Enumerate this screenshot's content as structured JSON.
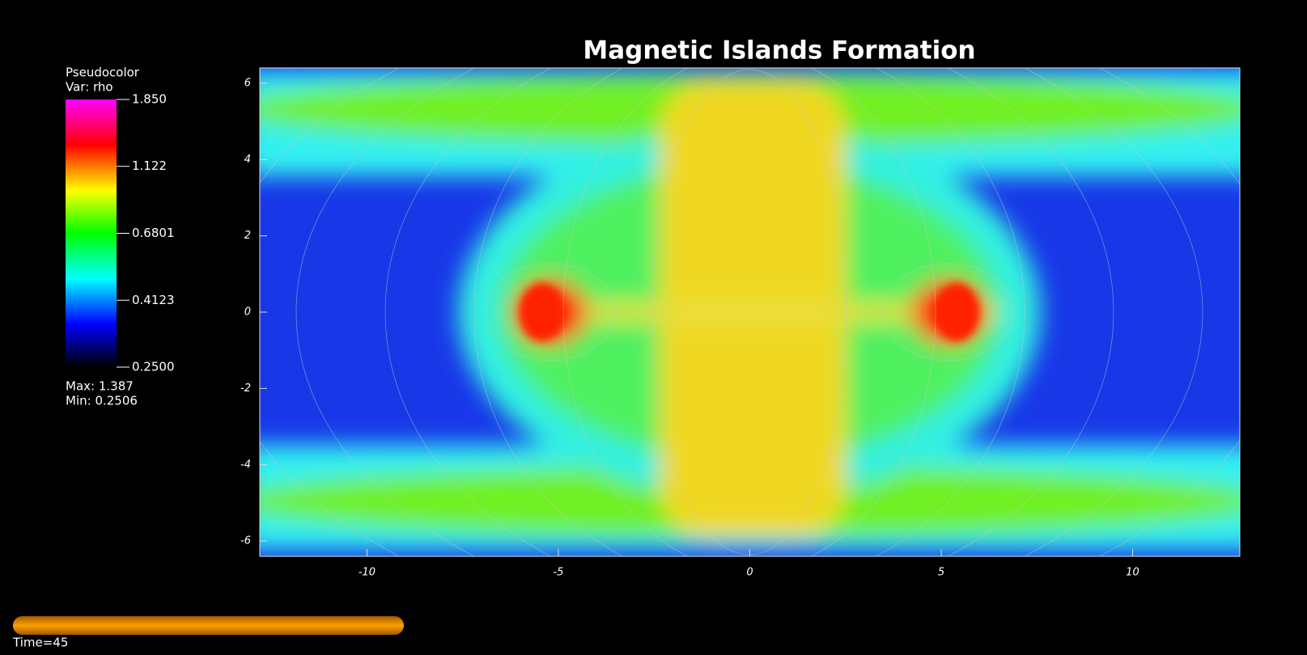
{
  "chart_data": {
    "type": "pseudocolor",
    "title": "Magnetic Islands Formation",
    "legend": {
      "title": "Pseudocolor",
      "variable": "Var: rho",
      "max": "Max:  1.387",
      "min": "Min:  0.2506"
    },
    "colorbar_scale": "log",
    "colorbar_ticks": [
      {
        "value": 1.85,
        "label": "1.850"
      },
      1.122,
      0.6801,
      0.4123,
      {
        "value": 0.25,
        "label": "0.2500"
      }
    ],
    "xlim": [
      -12.8,
      12.8
    ],
    "ylim": [
      -6.4,
      6.4
    ],
    "xticks": [
      -10,
      -5,
      0,
      5,
      10
    ],
    "yticks": [
      -6,
      -4,
      -2,
      0,
      2,
      4,
      6
    ],
    "time": "Time=45"
  }
}
